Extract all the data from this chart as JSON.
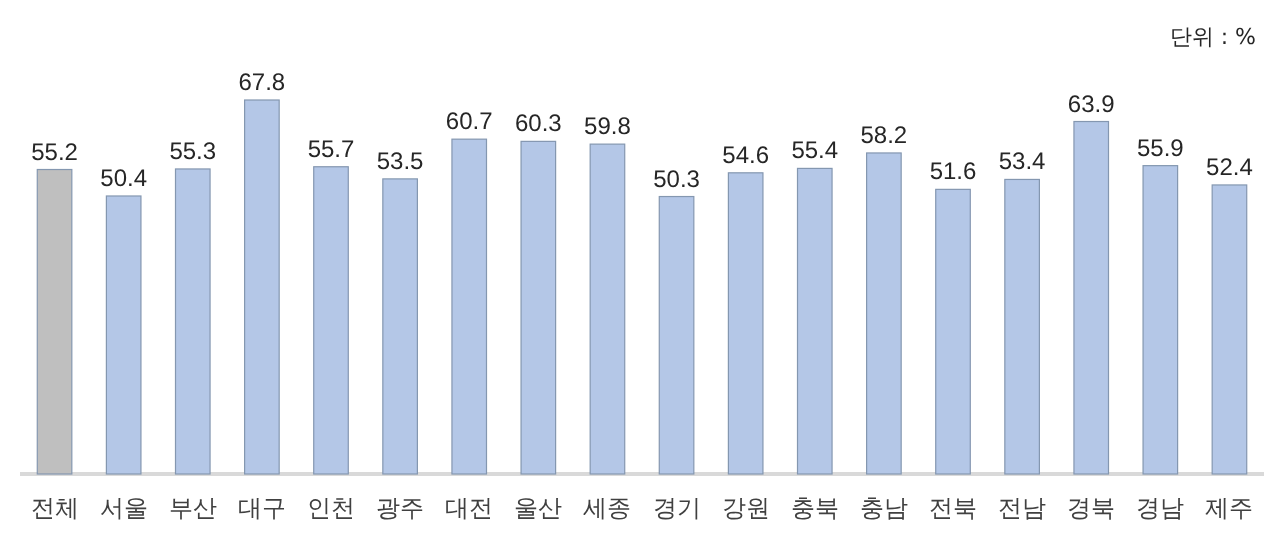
{
  "chart_data": {
    "type": "bar",
    "categories": [
      "전체",
      "서울",
      "부산",
      "대구",
      "인천",
      "광주",
      "대전",
      "울산",
      "세종",
      "경기",
      "강원",
      "충북",
      "충남",
      "전북",
      "전남",
      "경북",
      "경남",
      "제주"
    ],
    "values": [
      55.2,
      50.4,
      55.3,
      67.8,
      55.7,
      53.5,
      60.7,
      60.3,
      59.8,
      50.3,
      54.6,
      55.4,
      58.2,
      51.6,
      53.4,
      63.9,
      55.9,
      52.4
    ],
    "colors": [
      "#bfbfbf",
      "#b4c7e7",
      "#b4c7e7",
      "#b4c7e7",
      "#b4c7e7",
      "#b4c7e7",
      "#b4c7e7",
      "#b4c7e7",
      "#b4c7e7",
      "#b4c7e7",
      "#b4c7e7",
      "#b4c7e7",
      "#b4c7e7",
      "#b4c7e7",
      "#b4c7e7",
      "#b4c7e7",
      "#b4c7e7",
      "#b4c7e7"
    ],
    "data_labels": true,
    "annotations": [
      "단위 : %"
    ]
  }
}
